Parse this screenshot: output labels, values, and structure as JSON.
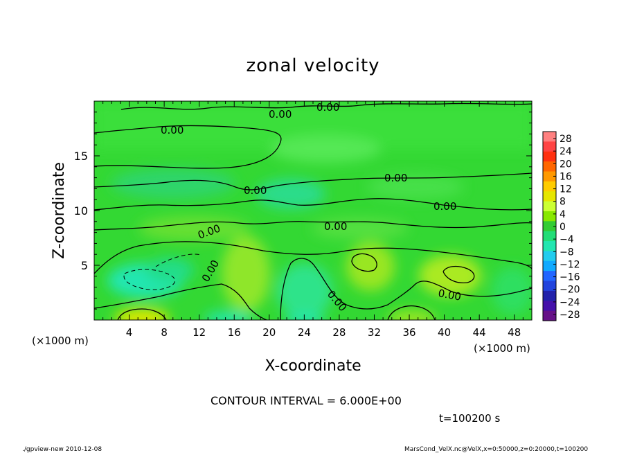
{
  "chart_data": {
    "type": "heatmap",
    "title": "zonal velocity",
    "xlabel": "X-coordinate",
    "ylabel": "Z-coordinate",
    "x_unit": "(×1000 m)",
    "y_unit": "(×1000 m)",
    "xlim": [
      0,
      50
    ],
    "ylim": [
      0,
      20
    ],
    "x_ticks": [
      "4",
      "8",
      "12",
      "16",
      "20",
      "24",
      "28",
      "32",
      "36",
      "40",
      "44",
      "48"
    ],
    "y_ticks": [
      "5",
      "10",
      "15"
    ],
    "contour_labels": [
      "0.00",
      "0.00",
      "0.00",
      "0.00",
      "0.00",
      "0.00",
      "0.00",
      "0.00",
      "0.00",
      "0.00",
      "0.00"
    ],
    "colorbar": {
      "labels": [
        "28",
        "24",
        "20",
        "16",
        "12",
        "8",
        "4",
        "0",
        "−4",
        "−8",
        "−12",
        "−16",
        "−20",
        "−24",
        "−28"
      ],
      "colors": [
        "#ff8080",
        "#ff4444",
        "#ff3010",
        "#ff6600",
        "#ff9900",
        "#ffcc00",
        "#e6e600",
        "#ccff33",
        "#88e800",
        "#33cc33",
        "#22dd77",
        "#22e6b0",
        "#22ccee",
        "#11aaff",
        "#2266ff",
        "#2244dd",
        "#2222aa",
        "#4411aa",
        "#661188"
      ]
    },
    "contour_interval_text": "CONTOUR INTERVAL = 6.000E+00",
    "time_text": "t=100200 s",
    "grid": false
  },
  "footer": {
    "left": "./gpview-new   2010-12-08",
    "right": "MarsCond_VelX.nc@VelX,x=0:50000,z=0:20000,t=100200"
  }
}
